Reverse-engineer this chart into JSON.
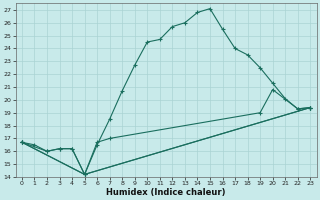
{
  "xlabel": "Humidex (Indice chaleur)",
  "background_color": "#c8eaea",
  "grid_color": "#aad4d4",
  "line_color": "#1a6e5e",
  "xlim": [
    -0.5,
    23.5
  ],
  "ylim": [
    14,
    27.5
  ],
  "xticks": [
    0,
    1,
    2,
    3,
    4,
    5,
    6,
    7,
    8,
    9,
    10,
    11,
    12,
    13,
    14,
    15,
    16,
    17,
    18,
    19,
    20,
    21,
    22,
    23
  ],
  "yticks": [
    14,
    15,
    16,
    17,
    18,
    19,
    20,
    21,
    22,
    23,
    24,
    25,
    26,
    27
  ],
  "lines": [
    {
      "x": [
        0,
        1,
        2,
        3,
        4,
        5,
        6,
        7,
        8,
        9,
        10,
        11,
        12,
        13,
        14,
        15,
        16,
        17,
        18,
        19,
        20,
        21,
        22,
        23
      ],
      "y": [
        16.7,
        16.5,
        16.0,
        16.2,
        16.2,
        14.2,
        16.5,
        18.5,
        20.7,
        22.7,
        24.5,
        24.7,
        25.7,
        26.0,
        26.8,
        27.1,
        25.5,
        24.0,
        23.5,
        22.5,
        21.3,
        20.1,
        19.3,
        19.4
      ]
    },
    {
      "x": [
        0,
        2,
        3,
        4,
        5,
        6,
        7,
        19,
        20,
        22,
        23
      ],
      "y": [
        16.7,
        16.0,
        16.2,
        16.2,
        14.2,
        16.7,
        17.0,
        19.0,
        20.8,
        19.3,
        19.4
      ]
    },
    {
      "x": [
        0,
        5,
        23
      ],
      "y": [
        16.7,
        14.2,
        19.4
      ]
    },
    {
      "x": [
        0,
        5,
        23
      ],
      "y": [
        16.7,
        14.2,
        19.4
      ]
    }
  ]
}
